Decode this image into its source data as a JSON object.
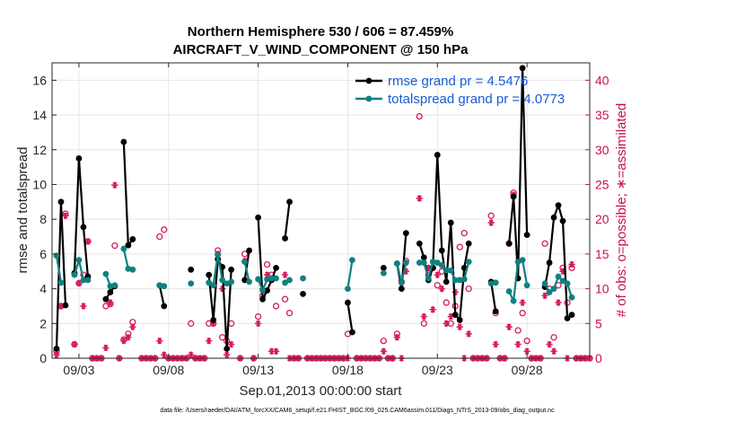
{
  "chart_data": {
    "type": "line",
    "title": "Northern Hemisphere 530 / 606 = 87.459%",
    "subtitle": "AIRCRAFT_V_WIND_COMPONENT @ 150 hPa",
    "xlabel": "Sep.01,2013 00:00:00 start",
    "ylabel": "rmse and totalspread",
    "ylabel_right": "# of obs: o=possible; ∗=assimilated",
    "xlim": [
      1.5,
      31.5
    ],
    "ylim": [
      0,
      17
    ],
    "ylim_right": [
      0,
      42.5
    ],
    "x_ticks": [
      3,
      8,
      13,
      18,
      23,
      28
    ],
    "x_tick_labels": [
      "09/03",
      "09/08",
      "09/13",
      "09/18",
      "09/23",
      "09/28"
    ],
    "y_ticks": [
      0,
      2,
      4,
      6,
      8,
      10,
      12,
      14,
      16
    ],
    "y_ticks_right": [
      0,
      5,
      10,
      15,
      20,
      25,
      30,
      35,
      40
    ],
    "grid": true,
    "legend_position": "top-right",
    "footer": "data file: /Users/raeder/DAI/ATM_forcXX/CAM6_setup/f.e21.FHIST_BGC.f09_025.CAM6assim.011/Diags_NTrS_2013-09/obs_diag_output.nc",
    "series": [
      {
        "name": "rmse grand pr = 4.5476",
        "color": "#000000",
        "segments": [
          [
            [
              1.75,
              0.55
            ],
            [
              2.0,
              9.0
            ],
            [
              2.25,
              3.05
            ]
          ],
          [
            [
              2.75,
              4.9
            ],
            [
              3.0,
              11.5
            ],
            [
              3.25,
              7.55
            ],
            [
              3.5,
              4.7
            ]
          ],
          [
            [
              4.5,
              3.4
            ],
            [
              4.75,
              3.8
            ],
            [
              5.0,
              4.15
            ]
          ],
          [
            [
              5.5,
              12.45
            ],
            [
              5.75,
              6.5
            ],
            [
              6.0,
              6.85
            ]
          ],
          [
            [
              7.5,
              4.2
            ],
            [
              7.75,
              3.0
            ]
          ],
          [
            [
              9.25,
              5.1
            ]
          ],
          [
            [
              10.25,
              4.8
            ],
            [
              10.5,
              2.2
            ],
            [
              10.75,
              5.7
            ],
            [
              11.0,
              5.25
            ],
            [
              11.25,
              0.55
            ],
            [
              11.5,
              5.1
            ]
          ],
          [
            [
              12.25,
              4.5
            ],
            [
              12.5,
              6.2
            ]
          ],
          [
            [
              13.0,
              8.1
            ],
            [
              13.25,
              3.4
            ],
            [
              13.5,
              3.9
            ],
            [
              13.75,
              4.5
            ],
            [
              14.0,
              5.2
            ]
          ],
          [
            [
              14.5,
              6.9
            ],
            [
              14.75,
              9.0
            ]
          ],
          [
            [
              15.5,
              3.7
            ]
          ],
          [
            [
              18.0,
              3.2
            ],
            [
              18.25,
              1.5
            ]
          ],
          [
            [
              20.0,
              5.2
            ]
          ],
          [
            [
              20.75,
              5.45
            ],
            [
              21.0,
              4.0
            ],
            [
              21.25,
              7.2
            ]
          ],
          [
            [
              22.0,
              6.6
            ],
            [
              22.25,
              5.8
            ],
            [
              22.5,
              4.5
            ],
            [
              22.75,
              5.2
            ],
            [
              23.0,
              11.7
            ],
            [
              23.25,
              6.2
            ],
            [
              23.5,
              4.4
            ],
            [
              23.75,
              7.8
            ],
            [
              24.0,
              2.5
            ],
            [
              24.25,
              2.2
            ],
            [
              24.5,
              5.2
            ],
            [
              24.75,
              6.6
            ]
          ],
          [
            [
              26.0,
              4.4
            ],
            [
              26.25,
              2.7
            ]
          ],
          [
            [
              27.0,
              6.6
            ],
            [
              27.25,
              9.3
            ],
            [
              27.5,
              4.6
            ],
            [
              27.75,
              16.7
            ],
            [
              28.0,
              7.1
            ]
          ],
          [
            [
              29.0,
              4.1
            ],
            [
              29.25,
              5.5
            ],
            [
              29.5,
              8.1
            ],
            [
              29.75,
              8.8
            ],
            [
              30.0,
              7.9
            ],
            [
              30.25,
              2.3
            ],
            [
              30.5,
              2.5
            ]
          ]
        ]
      },
      {
        "name": "totalspread grand pr = 4.0773",
        "color": "#108080",
        "segments": [
          [
            [
              1.75,
              5.9
            ],
            [
              2.0,
              4.35
            ]
          ],
          [
            [
              2.75,
              4.8
            ],
            [
              3.0,
              5.65
            ],
            [
              3.25,
              4.5
            ],
            [
              3.5,
              4.5
            ]
          ],
          [
            [
              4.5,
              4.85
            ],
            [
              4.75,
              4.15
            ],
            [
              5.0,
              4.2
            ]
          ],
          [
            [
              5.5,
              6.3
            ],
            [
              5.75,
              5.15
            ],
            [
              6.0,
              5.1
            ]
          ],
          [
            [
              7.5,
              4.2
            ],
            [
              7.75,
              4.15
            ]
          ],
          [
            [
              9.25,
              4.3
            ]
          ],
          [
            [
              10.25,
              4.35
            ],
            [
              10.5,
              4.2
            ],
            [
              10.75,
              5.95
            ],
            [
              11.0,
              4.5
            ],
            [
              11.25,
              4.3
            ],
            [
              11.5,
              4.4
            ]
          ],
          [
            [
              12.25,
              5.55
            ],
            [
              12.5,
              4.4
            ]
          ],
          [
            [
              13.0,
              4.55
            ],
            [
              13.25,
              3.9
            ],
            [
              13.5,
              4.55
            ],
            [
              13.75,
              4.6
            ],
            [
              14.0,
              4.6
            ]
          ],
          [
            [
              14.5,
              4.35
            ],
            [
              14.75,
              4.5
            ]
          ],
          [
            [
              15.5,
              4.6
            ]
          ],
          [
            [
              18.0,
              4.0
            ],
            [
              18.25,
              5.65
            ]
          ],
          [
            [
              20.0,
              4.9
            ]
          ],
          [
            [
              20.75,
              5.45
            ],
            [
              21.0,
              4.35
            ],
            [
              21.25,
              5.5
            ]
          ],
          [
            [
              22.0,
              5.5
            ],
            [
              22.25,
              5.5
            ],
            [
              22.5,
              4.6
            ],
            [
              22.75,
              5.55
            ],
            [
              23.0,
              5.5
            ],
            [
              23.25,
              5.35
            ],
            [
              23.5,
              5.05
            ],
            [
              23.75,
              5.05
            ],
            [
              24.0,
              4.5
            ],
            [
              24.25,
              4.5
            ],
            [
              24.5,
              4.55
            ],
            [
              24.75,
              5.55
            ]
          ],
          [
            [
              26.0,
              4.3
            ],
            [
              26.25,
              4.35
            ]
          ],
          [
            [
              27.0,
              3.85
            ],
            [
              27.25,
              3.3
            ],
            [
              27.5,
              5.55
            ],
            [
              27.75,
              5.65
            ],
            [
              28.0,
              4.2
            ]
          ],
          [
            [
              29.0,
              4.3
            ],
            [
              29.25,
              3.8
            ],
            [
              29.5,
              4.0
            ],
            [
              29.75,
              4.7
            ],
            [
              30.0,
              4.45
            ],
            [
              30.25,
              4.3
            ],
            [
              30.5,
              3.5
            ]
          ]
        ]
      }
    ],
    "obs_possible": [
      [
        1.75,
        1
      ],
      [
        2.0,
        7.5
      ],
      [
        2.25,
        20.8
      ],
      [
        2.75,
        2
      ],
      [
        3.0,
        10.8
      ],
      [
        3.25,
        12
      ],
      [
        3.5,
        16.8
      ],
      [
        4.5,
        7.5
      ],
      [
        4.75,
        7.8
      ],
      [
        5.0,
        16.2
      ],
      [
        5.5,
        2.7
      ],
      [
        5.75,
        3.5
      ],
      [
        6.0,
        5.2
      ],
      [
        7.5,
        17.5
      ],
      [
        7.75,
        18.5
      ],
      [
        9.25,
        5
      ],
      [
        10.25,
        5
      ],
      [
        10.5,
        5
      ],
      [
        10.75,
        15.5
      ],
      [
        11.0,
        3
      ],
      [
        11.25,
        2.5
      ],
      [
        11.5,
        5
      ],
      [
        12.25,
        15
      ],
      [
        13.0,
        6
      ],
      [
        13.25,
        9
      ],
      [
        13.5,
        13.5
      ],
      [
        13.75,
        12
      ],
      [
        14.0,
        7.5
      ],
      [
        14.5,
        8.5
      ],
      [
        14.75,
        6.5
      ],
      [
        18.0,
        3.5
      ],
      [
        20.0,
        2.5
      ],
      [
        20.75,
        3.5
      ],
      [
        21.0,
        11
      ],
      [
        21.25,
        14
      ],
      [
        22.0,
        34.8
      ],
      [
        22.25,
        5
      ],
      [
        22.5,
        12
      ],
      [
        22.75,
        13
      ],
      [
        23.0,
        10.5
      ],
      [
        23.25,
        12.5
      ],
      [
        23.5,
        8
      ],
      [
        23.75,
        5
      ],
      [
        24.0,
        7.5
      ],
      [
        24.25,
        16
      ],
      [
        24.5,
        18
      ],
      [
        24.75,
        10
      ],
      [
        26.0,
        20.5
      ],
      [
        26.25,
        6.5
      ],
      [
        27.0,
        16.5
      ],
      [
        27.25,
        23.8
      ],
      [
        27.5,
        4
      ],
      [
        27.75,
        6.5
      ],
      [
        28.0,
        2.5
      ],
      [
        29.0,
        16.5
      ],
      [
        29.25,
        10
      ],
      [
        29.5,
        3
      ],
      [
        29.75,
        10.5
      ],
      [
        30.0,
        13
      ],
      [
        30.25,
        8
      ],
      [
        30.5,
        13
      ]
    ],
    "obs_assimilated": [
      [
        1.75,
        0.5
      ],
      [
        2.0,
        7.5
      ],
      [
        2.25,
        20.5
      ],
      [
        2.75,
        2
      ],
      [
        3.0,
        10.8
      ],
      [
        3.25,
        7.5
      ],
      [
        3.5,
        16.8
      ],
      [
        4.5,
        1.5
      ],
      [
        4.75,
        8
      ],
      [
        5.0,
        24.9
      ],
      [
        5.5,
        2.5
      ],
      [
        5.75,
        3
      ],
      [
        6.0,
        4.5
      ],
      [
        7.5,
        2.5
      ],
      [
        7.75,
        0.5
      ],
      [
        9.25,
        0.5
      ],
      [
        10.25,
        2.5
      ],
      [
        10.5,
        5
      ],
      [
        10.75,
        15
      ],
      [
        11.0,
        10
      ],
      [
        11.25,
        0.5
      ],
      [
        11.5,
        2
      ],
      [
        12.25,
        14
      ],
      [
        13.0,
        5
      ],
      [
        13.25,
        10
      ],
      [
        13.5,
        12
      ],
      [
        13.75,
        1
      ],
      [
        14.0,
        1
      ],
      [
        14.5,
        12
      ],
      [
        14.75,
        0
      ],
      [
        18.0,
        0
      ],
      [
        20.0,
        1
      ],
      [
        20.75,
        3
      ],
      [
        21.0,
        0
      ],
      [
        21.25,
        12.5
      ],
      [
        22.0,
        23
      ],
      [
        22.25,
        6
      ],
      [
        22.5,
        13
      ],
      [
        22.75,
        7
      ],
      [
        23.0,
        12
      ],
      [
        23.25,
        10
      ],
      [
        23.5,
        5
      ],
      [
        23.75,
        6
      ],
      [
        24.0,
        9.5
      ],
      [
        24.25,
        4.5
      ],
      [
        24.5,
        0
      ],
      [
        24.75,
        3.5
      ],
      [
        26.0,
        19.5
      ],
      [
        26.25,
        2
      ],
      [
        27.0,
        4.5
      ],
      [
        27.25,
        23.5
      ],
      [
        27.5,
        2
      ],
      [
        27.75,
        8
      ],
      [
        28.0,
        1
      ],
      [
        29.0,
        9
      ],
      [
        29.25,
        2
      ],
      [
        29.5,
        1
      ],
      [
        29.75,
        8
      ],
      [
        30.0,
        12.5
      ],
      [
        30.25,
        0
      ],
      [
        30.5,
        13.5
      ]
    ],
    "obs_zero_x": [
      15.75,
      16.0,
      16.25,
      16.5,
      16.75,
      17.0,
      17.25,
      17.5,
      17.75,
      18.5,
      18.75,
      19.0,
      19.25,
      19.5,
      19.75,
      20.25,
      20.5,
      31.5,
      6.5,
      6.75,
      7.0,
      7.25,
      8.0,
      8.25,
      8.5,
      8.75,
      9.0,
      9.5,
      9.75,
      10.0,
      12.0,
      12.75,
      15.0,
      15.25,
      25.0,
      25.25,
      25.5,
      25.75,
      26.5,
      26.75,
      28.25,
      28.5,
      28.75,
      30.75,
      31.0,
      31.25,
      3.75,
      4.0,
      4.25,
      5.25
    ]
  }
}
